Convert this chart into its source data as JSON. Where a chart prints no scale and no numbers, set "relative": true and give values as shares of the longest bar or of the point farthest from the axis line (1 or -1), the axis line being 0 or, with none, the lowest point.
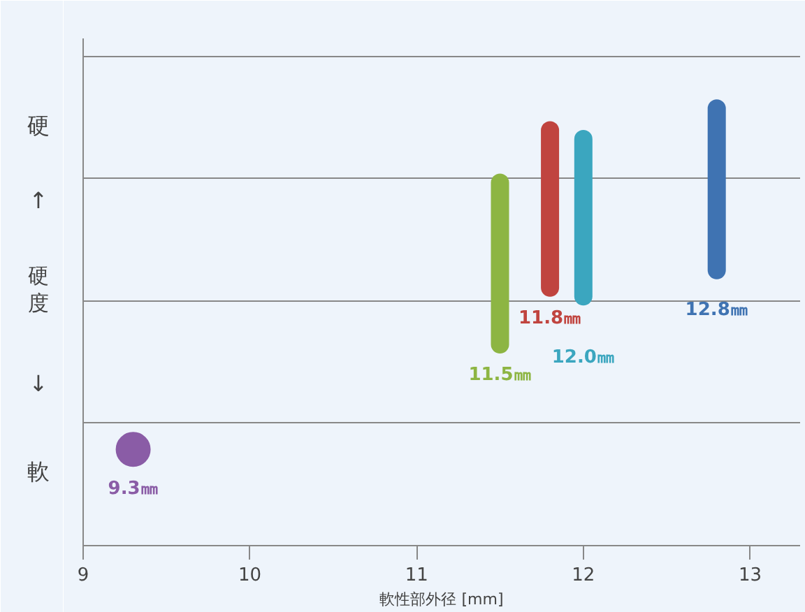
{
  "chart_data": {
    "type": "line",
    "relative": true,
    "xlabel": "軟性部外径 [mm]",
    "ylabel": "硬度",
    "xlim": [
      9,
      13.3
    ],
    "xticks": [
      9,
      10,
      11,
      12,
      13
    ],
    "grid": "y",
    "series": [
      {
        "type": "scatter",
        "x": [
          9.3
        ],
        "values": [
          0.22
        ],
        "color": "#8a5ca6"
      },
      {
        "x": [
          11.5,
          11.5
        ],
        "values": [
          0.46,
          0.83
        ],
        "color": "#8db543"
      },
      {
        "x": [
          11.8,
          11.8
        ],
        "values": [
          0.59,
          0.95
        ],
        "color": "#c0443f"
      },
      {
        "x": [
          12.0,
          12.0
        ],
        "values": [
          0.57,
          0.93
        ],
        "color": "#3ba6bf"
      },
      {
        "x": [
          12.8,
          12.8
        ],
        "values": [
          0.63,
          1
        ],
        "color": "#3f73b2"
      }
    ],
    "annotations": [
      "硬",
      "↑",
      "↓",
      "軟",
      "9.3㎜",
      "11.5㎜",
      "11.8㎜",
      "12.0㎜",
      "12.8㎜"
    ]
  }
}
